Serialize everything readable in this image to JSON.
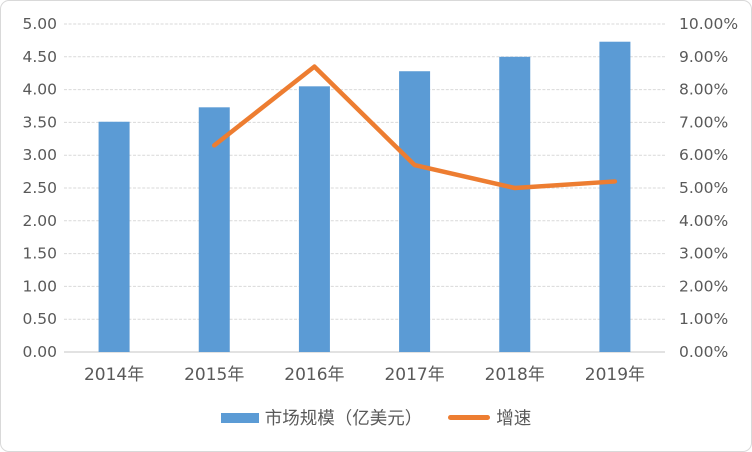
{
  "chart": {
    "background": "#FFFFFF",
    "frame_border_color": "#D9D9D9",
    "bar_color": "#5B9BD5",
    "line_color": "#ED7D31",
    "grid_color": "#D9D9D9",
    "axis_line_color": "#D9D9D9",
    "text_color": "#595959"
  },
  "chart_data": {
    "type": "bar",
    "subtype": "combo-bar-line-dual-axis",
    "title": "",
    "categories": [
      "2014年",
      "2015年",
      "2016年",
      "2017年",
      "2018年",
      "2019年"
    ],
    "series": [
      {
        "name": "市场规模（亿美元）",
        "type": "bar",
        "axis": "left",
        "values": [
          3.51,
          3.73,
          4.05,
          4.28,
          4.5,
          4.73
        ]
      },
      {
        "name": "增速",
        "type": "line",
        "axis": "right",
        "unit": "%",
        "values": [
          null,
          6.3,
          8.7,
          5.7,
          5.0,
          5.2
        ]
      }
    ],
    "left_axis": {
      "min": 0,
      "max": 5,
      "ticks": [
        "0.00",
        "0.50",
        "1.00",
        "1.50",
        "2.00",
        "2.50",
        "3.00",
        "3.50",
        "4.00",
        "4.50",
        "5.00"
      ]
    },
    "right_axis": {
      "min": 0,
      "max": 10,
      "ticks": [
        "0.00%",
        "1.00%",
        "2.00%",
        "3.00%",
        "4.00%",
        "5.00%",
        "6.00%",
        "7.00%",
        "8.00%",
        "9.00%",
        "10.00%"
      ]
    },
    "grid": true,
    "legend_position": "bottom"
  }
}
